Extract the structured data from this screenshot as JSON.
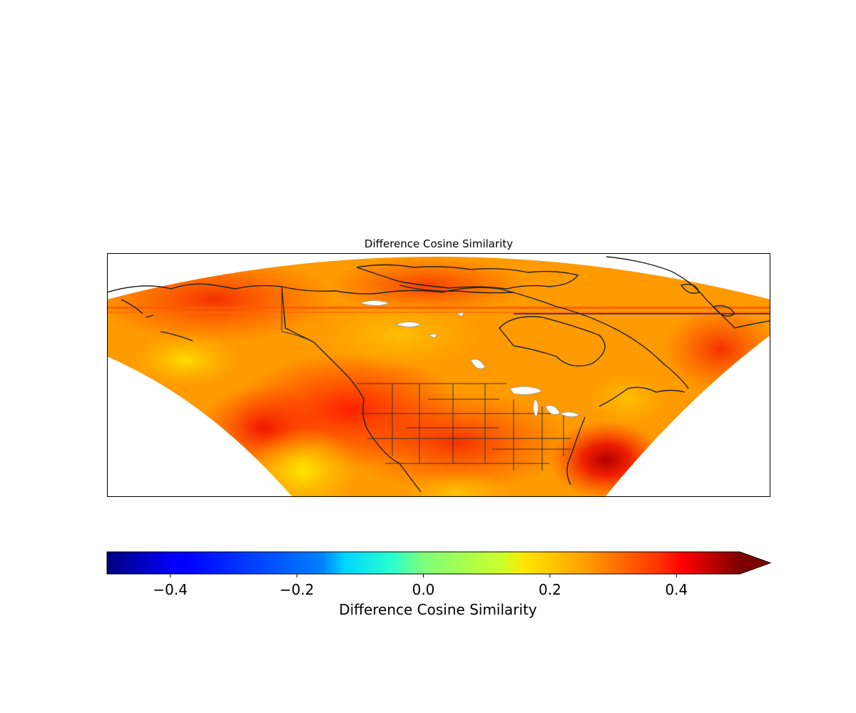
{
  "map": {
    "title": "Difference Cosine Similarity",
    "projection": "conic",
    "region": "North America",
    "colormap": "jet",
    "layers": [
      "coastlines",
      "country-borders",
      "us-state-borders",
      "lakes"
    ]
  },
  "colorbar": {
    "label": "Difference Cosine Similarity",
    "vmin": -0.5,
    "vmax": 0.5,
    "extend": "max",
    "ticks": [
      {
        "value": -0.4,
        "label": "−0.4"
      },
      {
        "value": -0.2,
        "label": "−0.2"
      },
      {
        "value": 0.0,
        "label": "0.0"
      },
      {
        "value": 0.2,
        "label": "0.2"
      },
      {
        "value": 0.4,
        "label": "0.4"
      }
    ]
  },
  "colors": {
    "field_base": "#ff9a00",
    "field_high": "#ff2a00",
    "field_low": "#ffd800",
    "lakes": "#ffffff",
    "borders": "#333333"
  }
}
